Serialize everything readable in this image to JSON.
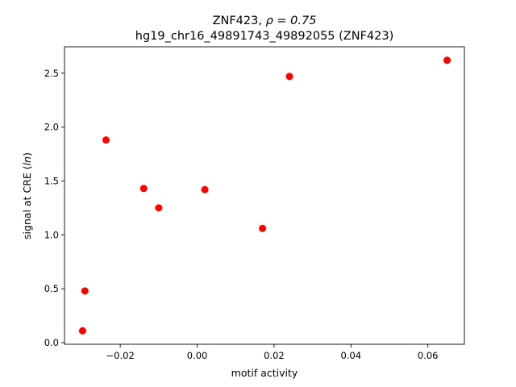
{
  "chart_data": {
    "type": "scatter",
    "title_line1_text": "ZNF423, ",
    "title_line1_rho": "ρ = 0.75",
    "title_line2": "hg19_chr16_49891743_49892055 (ZNF423)",
    "xlabel": "motif activity",
    "ylabel_prefix": "signal at CRE (",
    "ylabel_ln": "ln",
    "ylabel_suffix": ")",
    "xlim": [
      -0.0345,
      0.0695
    ],
    "ylim": [
      -0.015,
      2.745
    ],
    "xticks": [
      -0.02,
      0.0,
      0.02,
      0.04,
      0.06
    ],
    "xtick_labels": [
      "−0.02",
      "0.00",
      "0.02",
      "0.04",
      "0.06"
    ],
    "yticks": [
      0.0,
      0.5,
      1.0,
      1.5,
      2.0,
      2.5
    ],
    "ytick_labels": [
      "0.0",
      "0.5",
      "1.0",
      "1.5",
      "2.0",
      "2.5"
    ],
    "grid": false,
    "marker_color": "#ff0000",
    "points": [
      {
        "x": -0.0298,
        "y": 0.11
      },
      {
        "x": -0.0292,
        "y": 0.48
      },
      {
        "x": -0.0237,
        "y": 1.88
      },
      {
        "x": -0.0139,
        "y": 1.43
      },
      {
        "x": -0.01,
        "y": 1.25
      },
      {
        "x": 0.002,
        "y": 1.42
      },
      {
        "x": 0.017,
        "y": 1.06
      },
      {
        "x": 0.024,
        "y": 2.47
      },
      {
        "x": 0.065,
        "y": 2.62
      }
    ]
  }
}
